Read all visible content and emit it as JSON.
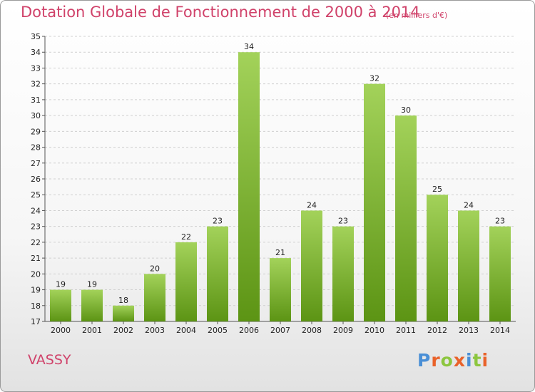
{
  "header": {
    "title": "Dotation Globale de Fonctionnement de 2000 à 2014",
    "subtitle": "(en milliers d'€)"
  },
  "footer": {
    "commune": "VASSY",
    "logo_letters": [
      "P",
      "r",
      "o",
      "x",
      "i",
      "t",
      "i"
    ],
    "logo_colors": [
      "#4a8fd6",
      "#e9622a",
      "#8cc63f",
      "#e9622a",
      "#4a8fd6",
      "#8cc63f",
      "#e9622a"
    ]
  },
  "colors": {
    "accent": "#d0426a",
    "bar_top": "#a3d25a",
    "bar_bottom": "#5c9414",
    "grid": "#d0d0d0"
  },
  "chart_data": {
    "type": "bar",
    "categories": [
      "2000",
      "2001",
      "2002",
      "2003",
      "2004",
      "2005",
      "2006",
      "2007",
      "2008",
      "2009",
      "2010",
      "2011",
      "2012",
      "2013",
      "2014"
    ],
    "values": [
      19,
      19,
      18,
      20,
      22,
      23,
      34,
      21,
      24,
      23,
      32,
      30,
      25,
      24,
      23
    ],
    "yticks": [
      "17",
      "18",
      "19",
      "20",
      "21",
      "22",
      "23",
      "24",
      "25",
      "26",
      "27",
      "28",
      "29",
      "30",
      "31",
      "32",
      "33",
      "34",
      "35"
    ],
    "ylim": [
      17,
      35
    ],
    "grid": true,
    "legend": false
  }
}
